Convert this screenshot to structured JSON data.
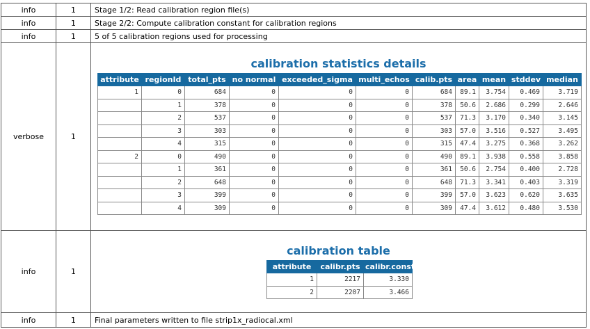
{
  "log": {
    "rows": [
      {
        "level": "info",
        "count": 1,
        "message": "Stage 1/2: Read calibration region file(s)"
      },
      {
        "level": "info",
        "count": 1,
        "message": "Stage 2/2: Compute calibration constant for calibration regions"
      },
      {
        "level": "info",
        "count": 1,
        "message": "5 of 5 calibration regions used for processing"
      },
      {
        "level": "verbose",
        "count": 1,
        "table": {
          "title": "calibration statistics details",
          "columns": [
            "attribute",
            "regionId",
            "total_pts",
            "no normal",
            "exceeded_sigma",
            "multi_echos",
            "calib.pts",
            "area",
            "mean",
            "stddev",
            "median"
          ],
          "groups": [
            {
              "attribute": "1",
              "rows": [
                [
                  "0",
                  "684",
                  "0",
                  "0",
                  "0",
                  "684",
                  "89.1",
                  "3.754",
                  "0.469",
                  "3.719"
                ],
                [
                  "1",
                  "378",
                  "0",
                  "0",
                  "0",
                  "378",
                  "50.6",
                  "2.686",
                  "0.299",
                  "2.646"
                ],
                [
                  "2",
                  "537",
                  "0",
                  "0",
                  "0",
                  "537",
                  "71.3",
                  "3.170",
                  "0.340",
                  "3.145"
                ],
                [
                  "3",
                  "303",
                  "0",
                  "0",
                  "0",
                  "303",
                  "57.0",
                  "3.516",
                  "0.527",
                  "3.495"
                ],
                [
                  "4",
                  "315",
                  "0",
                  "0",
                  "0",
                  "315",
                  "47.4",
                  "3.275",
                  "0.368",
                  "3.262"
                ]
              ]
            },
            {
              "attribute": "2",
              "rows": [
                [
                  "0",
                  "490",
                  "0",
                  "0",
                  "0",
                  "490",
                  "89.1",
                  "3.938",
                  "0.558",
                  "3.858"
                ],
                [
                  "1",
                  "361",
                  "0",
                  "0",
                  "0",
                  "361",
                  "50.6",
                  "2.754",
                  "0.400",
                  "2.728"
                ],
                [
                  "2",
                  "648",
                  "0",
                  "0",
                  "0",
                  "648",
                  "71.3",
                  "3.341",
                  "0.403",
                  "3.319"
                ],
                [
                  "3",
                  "399",
                  "0",
                  "0",
                  "0",
                  "399",
                  "57.0",
                  "3.623",
                  "0.620",
                  "3.635"
                ],
                [
                  "4",
                  "309",
                  "0",
                  "0",
                  "0",
                  "309",
                  "47.4",
                  "3.612",
                  "0.480",
                  "3.530"
                ]
              ]
            }
          ]
        }
      },
      {
        "level": "info",
        "count": 1,
        "table": {
          "title": "calibration table",
          "columns": [
            "attribute",
            "calibr.pts",
            "calibr.const"
          ],
          "rows": [
            [
              "1",
              "2217",
              "3.330"
            ],
            [
              "2",
              "2207",
              "3.466"
            ]
          ]
        }
      },
      {
        "level": "info",
        "count": 1,
        "message": "Final parameters written to file strip1x_radiocal.xml"
      }
    ]
  }
}
